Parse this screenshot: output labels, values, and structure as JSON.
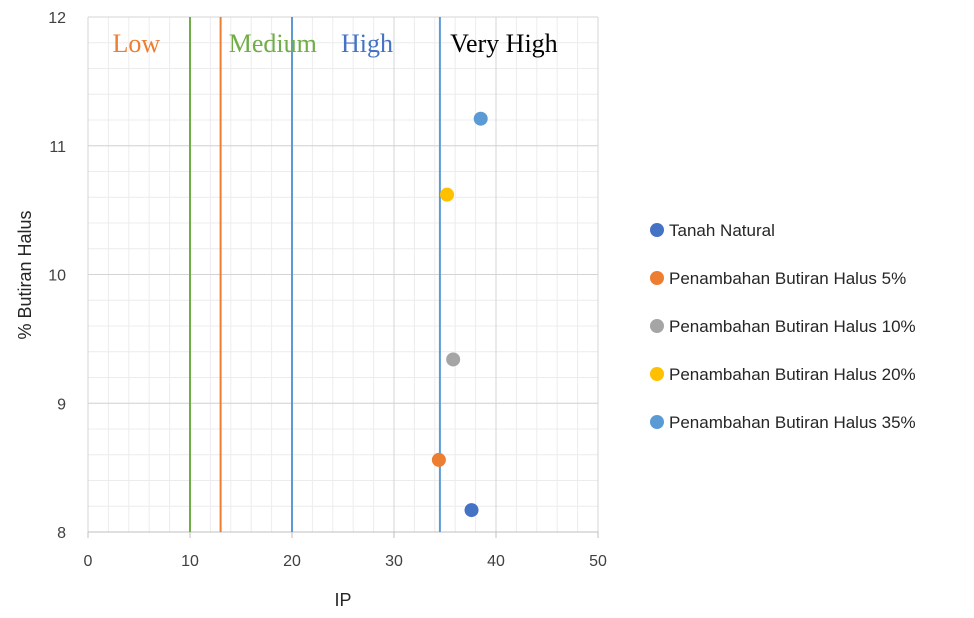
{
  "chart_data": {
    "type": "scatter",
    "xlabel": "IP",
    "ylabel": "% Butiran Halus",
    "xlim": [
      0,
      50
    ],
    "ylim": [
      8,
      12
    ],
    "x_ticks": [
      0,
      10,
      20,
      30,
      40,
      50
    ],
    "y_ticks": [
      8,
      9,
      10,
      11,
      12
    ],
    "grid": true,
    "minor_grid": true,
    "legend_position": "right",
    "series": [
      {
        "name": "Tanah Natural",
        "color": "#4472C4",
        "points": [
          {
            "x": 37.6,
            "y": 8.17
          }
        ]
      },
      {
        "name": "Penambahan Butiran Halus 5%",
        "color": "#ED7D31",
        "points": [
          {
            "x": 34.4,
            "y": 8.56
          }
        ]
      },
      {
        "name": "Penambahan Butiran Halus 10%",
        "color": "#A5A5A5",
        "points": [
          {
            "x": 35.8,
            "y": 9.34
          }
        ]
      },
      {
        "name": "Penambahan Butiran Halus 20%",
        "color": "#FFC000",
        "points": [
          {
            "x": 35.2,
            "y": 10.62
          }
        ]
      },
      {
        "name": "Penambahan Butiran Halus 35%",
        "color": "#5B9BD5",
        "points": [
          {
            "x": 38.5,
            "y": 11.21
          }
        ]
      }
    ],
    "reference_lines": [
      {
        "x": 10,
        "color": "#70AD47"
      },
      {
        "x": 13,
        "color": "#ED7D31"
      },
      {
        "x": 20,
        "color": "#5B9BD5"
      },
      {
        "x": 34.5,
        "color": "#5B9BD5"
      }
    ],
    "annotations": [
      {
        "text": "Low",
        "x": 2.4,
        "color": "#ED7D31"
      },
      {
        "text": "Medium",
        "x": 13.8,
        "color": "#70AD47"
      },
      {
        "text": "High",
        "x": 24.8,
        "color": "#4472C4"
      },
      {
        "text": "Very High",
        "x": 35.5,
        "color": "#000000"
      }
    ]
  }
}
